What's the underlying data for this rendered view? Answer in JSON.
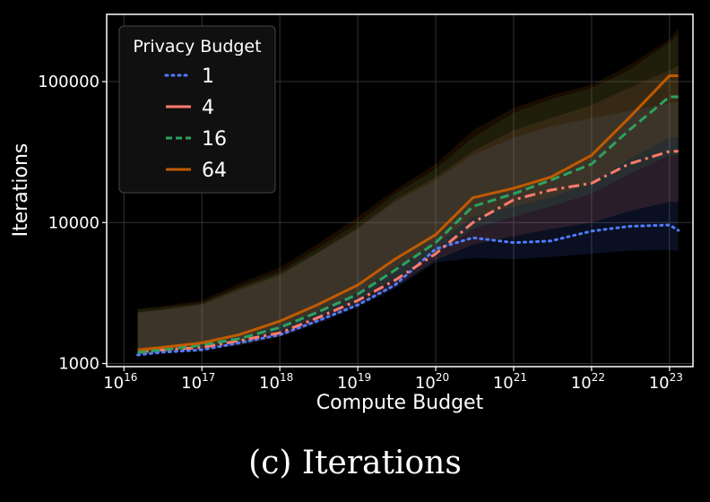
{
  "caption": "(c) Iterations",
  "colors": {
    "background": "#000000",
    "axes_border": "#ffffff",
    "grid": "#333333",
    "series_1": "#4f7cff",
    "series_4": "#ff7b6b",
    "series_16": "#2ca25f",
    "series_64": "#c05a00"
  },
  "chart_data": {
    "type": "line",
    "xlabel": "Compute Budget",
    "ylabel": "Iterations",
    "x_scale": "log",
    "y_scale": "log",
    "xlim": [
      6000000000000000.0,
      2e+23
    ],
    "ylim": [
      950,
      300000
    ],
    "grid": true,
    "legend": {
      "title": "Privacy Budget",
      "placement": "top-left"
    },
    "x_ticks": [
      {
        "base": "10",
        "exp": "16",
        "value": 1e+16
      },
      {
        "base": "10",
        "exp": "17",
        "value": 1e+17
      },
      {
        "base": "10",
        "exp": "18",
        "value": 1e+18
      },
      {
        "base": "10",
        "exp": "19",
        "value": 1e+19
      },
      {
        "base": "10",
        "exp": "20",
        "value": 1e+20
      },
      {
        "base": "10",
        "exp": "21",
        "value": 1e+21
      },
      {
        "base": "10",
        "exp": "22",
        "value": 1e+22
      },
      {
        "base": "10",
        "exp": "23",
        "value": 1e+23
      }
    ],
    "y_ticks": [
      {
        "label": "1000",
        "value": 1000
      },
      {
        "label": "10000",
        "value": 10000
      },
      {
        "label": "100000",
        "value": 100000
      }
    ],
    "x": [
      1.5e+16,
      3e+16,
      1e+17,
      3e+17,
      1e+18,
      3e+18,
      1e+19,
      3e+19,
      1e+20,
      3e+20,
      1e+21,
      3e+21,
      1e+22,
      3e+22,
      1e+23,
      1.3e+23
    ],
    "series": [
      {
        "name": "1",
        "style": "dotted",
        "color": "#4f7cff",
        "values": [
          1150,
          1200,
          1250,
          1400,
          1600,
          2000,
          2600,
          3600,
          6500,
          7800,
          7200,
          7400,
          8700,
          9400,
          9600,
          8800
        ],
        "band_low": [
          1150,
          1200,
          1250,
          1350,
          1550,
          1900,
          2500,
          3400,
          5200,
          5600,
          5500,
          5700,
          6000,
          6300,
          6400,
          6300
        ],
        "band_high": [
          2300,
          2400,
          2600,
          3300,
          4200,
          6000,
          9000,
          14000,
          20000,
          30000,
          40000,
          48000,
          55000,
          62000,
          70000,
          72000
        ]
      },
      {
        "name": "4",
        "style": "dashdot",
        "color": "#ff7b6b",
        "values": [
          1200,
          1250,
          1300,
          1450,
          1650,
          2100,
          2800,
          3900,
          6000,
          10000,
          14500,
          17000,
          19000,
          26000,
          32000,
          32000
        ],
        "band_low": [
          1150,
          1200,
          1250,
          1350,
          1550,
          1950,
          2600,
          3500,
          5400,
          7000,
          8000,
          9000,
          10000,
          12000,
          14000,
          14000
        ],
        "band_high": [
          2300,
          2400,
          2650,
          3400,
          4300,
          6100,
          9200,
          14500,
          21000,
          32000,
          45000,
          55000,
          68000,
          90000,
          120000,
          130000
        ]
      },
      {
        "name": "16",
        "style": "dashed",
        "color": "#2ca25f",
        "values": [
          1200,
          1250,
          1350,
          1500,
          1800,
          2300,
          3100,
          4600,
          7200,
          13000,
          16000,
          20000,
          26000,
          45000,
          78000,
          78000
        ],
        "band_low": [
          1150,
          1200,
          1300,
          1400,
          1700,
          2100,
          2800,
          4000,
          6000,
          9000,
          11000,
          13000,
          16000,
          22000,
          30000,
          30000
        ],
        "band_high": [
          2400,
          2500,
          2700,
          3500,
          4500,
          6500,
          10000,
          16000,
          24000,
          40000,
          60000,
          75000,
          90000,
          120000,
          190000,
          220000
        ]
      },
      {
        "name": "64",
        "style": "solid",
        "color": "#c05a00",
        "values": [
          1250,
          1300,
          1400,
          1600,
          2000,
          2600,
          3600,
          5500,
          8200,
          15000,
          17500,
          21000,
          30000,
          55000,
          110000,
          110000
        ],
        "band_low": [
          1200,
          1250,
          1350,
          1450,
          1850,
          2300,
          3200,
          4800,
          7000,
          11000,
          13000,
          15000,
          19000,
          28000,
          40000,
          40000
        ],
        "band_high": [
          2450,
          2550,
          2800,
          3700,
          4800,
          7000,
          11000,
          17000,
          26000,
          45000,
          65000,
          80000,
          95000,
          130000,
          200000,
          240000
        ]
      }
    ]
  }
}
